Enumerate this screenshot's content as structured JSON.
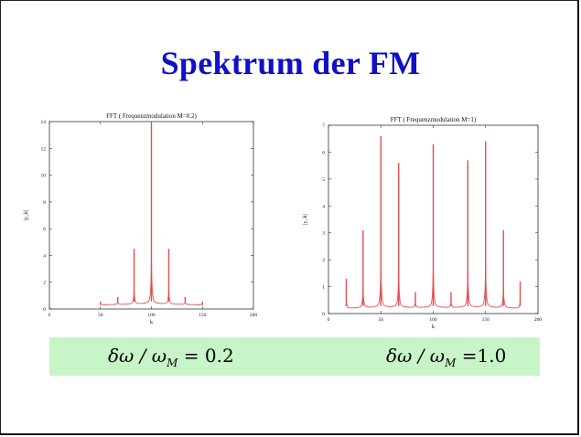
{
  "slide": {
    "title": "Spektrum der FM",
    "formulas": [
      {
        "lhs": "δω / ω",
        "sub": "M",
        "rhs": " = 0.2"
      },
      {
        "lhs": "δω / ω",
        "sub": "M",
        "rhs": " =1.0"
      }
    ]
  },
  "colors": {
    "title": "#1010c8",
    "trace": "#e05050",
    "band": "#c8f5c8"
  },
  "chart_data": [
    {
      "type": "line",
      "title": "FFT ( Frequenzmodulation M=0.2)",
      "xlabel": "k",
      "ylabel": "|y_k|",
      "xlim": [
        0,
        200
      ],
      "ylim": [
        0,
        14
      ],
      "xticks": [
        0,
        50,
        100,
        150,
        200
      ],
      "yticks": [
        0,
        2,
        4,
        6,
        8,
        10,
        12,
        14
      ],
      "grid": false,
      "peaks": [
        {
          "x": 50,
          "y": 0.3
        },
        {
          "x": 67,
          "y": 0.9
        },
        {
          "x": 83,
          "y": 4.5
        },
        {
          "x": 100,
          "y": 13.9
        },
        {
          "x": 117,
          "y": 4.5
        },
        {
          "x": 133,
          "y": 0.9
        },
        {
          "x": 150,
          "y": 0.3
        }
      ],
      "baseline": [
        50,
        150
      ]
    },
    {
      "type": "line",
      "title": "FFT ( Frequenzmodulation M=1)",
      "xlabel": "k",
      "ylabel": "|y_k|",
      "xlim": [
        0,
        200
      ],
      "ylim": [
        0,
        7
      ],
      "xticks": [
        0,
        50,
        100,
        150,
        200
      ],
      "yticks": [
        0,
        1,
        2,
        3,
        4,
        5,
        6,
        7
      ],
      "grid": false,
      "peaks": [
        {
          "x": 17,
          "y": 1.3
        },
        {
          "x": 33,
          "y": 3.1
        },
        {
          "x": 50,
          "y": 6.6
        },
        {
          "x": 67,
          "y": 5.6
        },
        {
          "x": 83,
          "y": 0.8
        },
        {
          "x": 100,
          "y": 6.3
        },
        {
          "x": 117,
          "y": 0.8
        },
        {
          "x": 133,
          "y": 5.7
        },
        {
          "x": 150,
          "y": 6.4
        },
        {
          "x": 167,
          "y": 3.1
        },
        {
          "x": 183,
          "y": 1.2
        }
      ],
      "baseline": [
        17,
        183
      ]
    }
  ]
}
